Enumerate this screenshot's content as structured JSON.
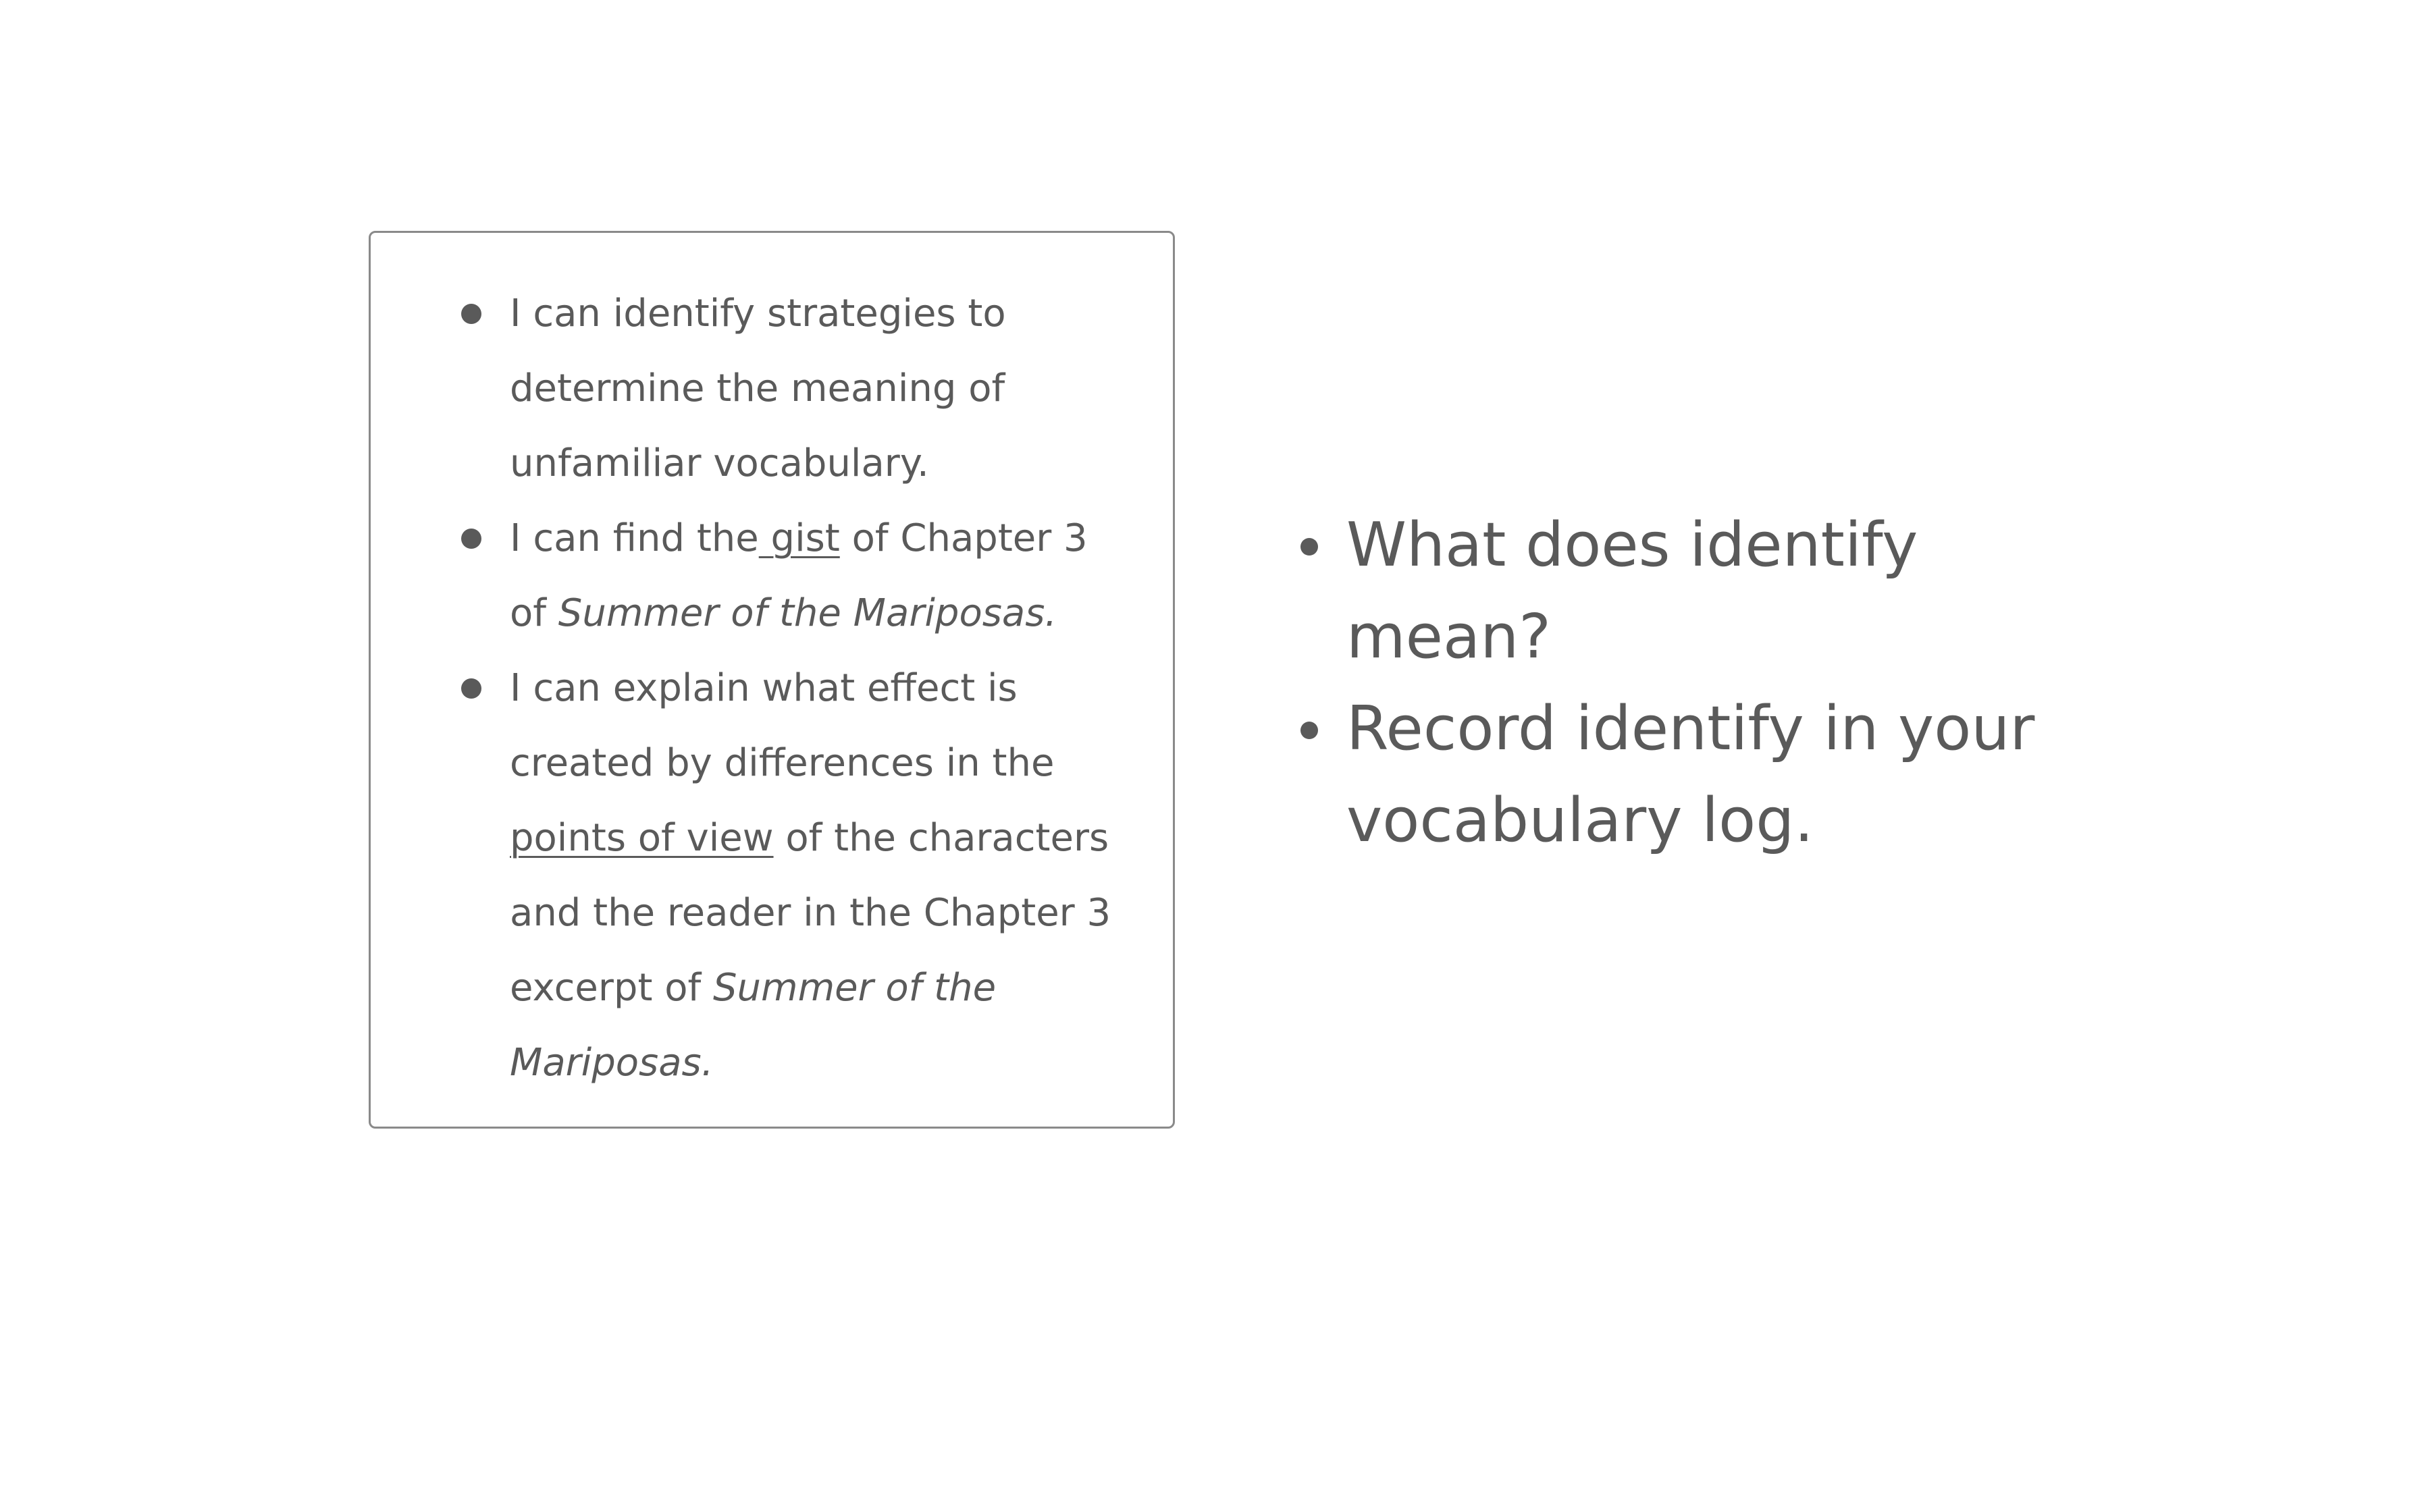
{
  "learning_targets": [
    {
      "lines": [
        "I can identify strategies to",
        "determine the meaning of",
        "unfamiliar vocabulary."
      ]
    },
    {
      "line1_before": "I can find the",
      "line1_underlined": " gist",
      "line1_after": " of Chapter 3",
      "line2_before": "of ",
      "line2_italic": "Summer of the Mariposas."
    },
    {
      "line1": "I can explain what effect is",
      "line2": "created by differences in the",
      "line3_underlined": "points of view",
      "line3_after": " of the characters",
      "line4": "and the reader in the Chapter 3",
      "line5_before": "excerpt of ",
      "line5_italic": "Summer of the",
      "line6_italic": "Mariposas."
    }
  ],
  "questions": [
    {
      "lines": [
        "What does identify",
        "mean?"
      ]
    },
    {
      "lines": [
        "Record identify in your",
        "vocabulary log."
      ]
    }
  ]
}
